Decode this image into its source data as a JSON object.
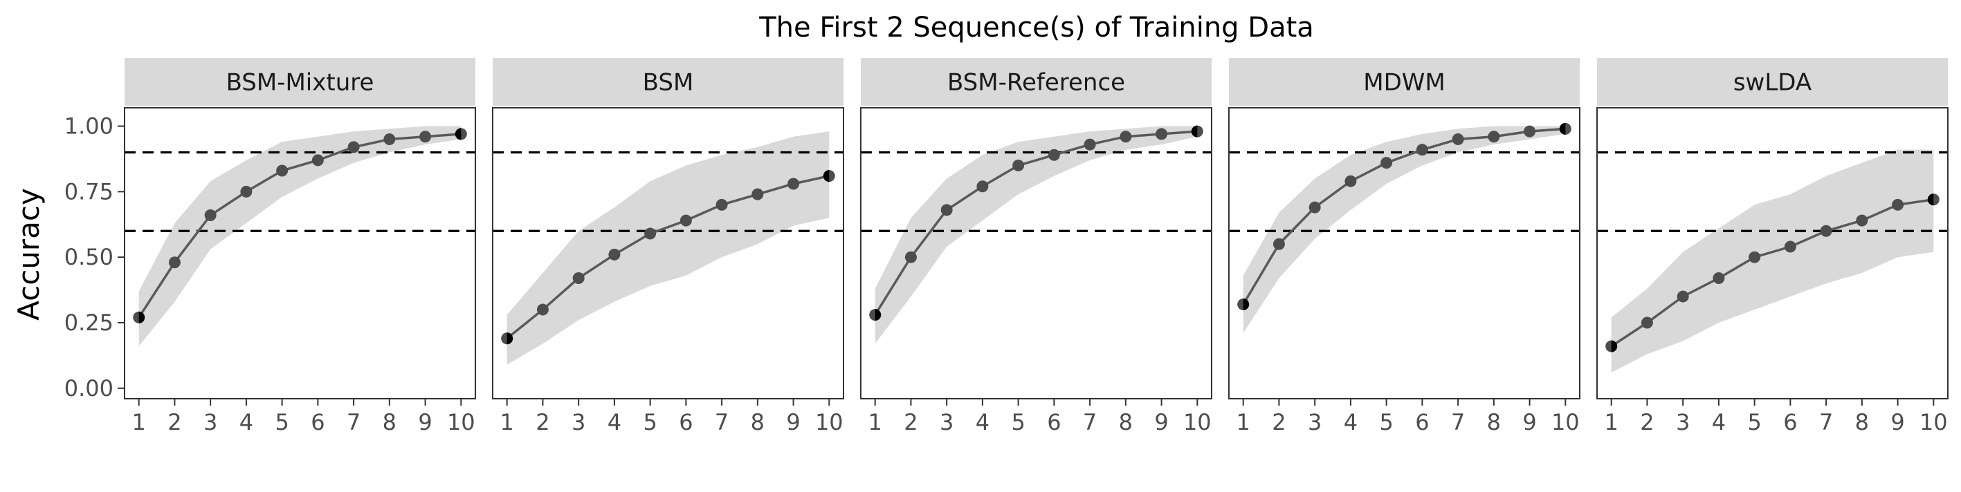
{
  "chart_data": {
    "type": "line",
    "title": "The First 2 Sequence(s) of Training Data",
    "xlabel": "",
    "ylabel": "Accuracy",
    "x": [
      1,
      2,
      3,
      4,
      5,
      6,
      7,
      8,
      9,
      10
    ],
    "x_tick_labels": [
      "1",
      "2",
      "3",
      "4",
      "5",
      "6",
      "7",
      "8",
      "9",
      "10"
    ],
    "y_tick_labels": [
      "0.00",
      "0.25",
      "0.50",
      "0.75",
      "1.00"
    ],
    "y_ticks": [
      0,
      0.25,
      0.5,
      0.75,
      1.0
    ],
    "xlim": [
      0.6,
      10.4
    ],
    "ylim": [
      -0.04,
      1.07
    ],
    "reference_lines": [
      0.6,
      0.9
    ],
    "grid": false,
    "legend": "none",
    "colors": {
      "line": "#5a5a5a",
      "point": "#4d4d4d",
      "ribbon": "#d9d9d9",
      "strip": "#d9d9d9",
      "reference": "#000000"
    },
    "panels": [
      {
        "name": "BSM-Mixture",
        "values": [
          0.27,
          0.48,
          0.66,
          0.75,
          0.83,
          0.87,
          0.92,
          0.95,
          0.96,
          0.97
        ],
        "lower": [
          0.16,
          0.33,
          0.53,
          0.63,
          0.73,
          0.8,
          0.86,
          0.9,
          0.93,
          0.95
        ],
        "upper": [
          0.37,
          0.63,
          0.79,
          0.87,
          0.94,
          0.96,
          0.98,
          0.99,
          1.0,
          1.0
        ]
      },
      {
        "name": "BSM",
        "values": [
          0.19,
          0.3,
          0.42,
          0.51,
          0.59,
          0.64,
          0.7,
          0.74,
          0.78,
          0.81
        ],
        "lower": [
          0.09,
          0.17,
          0.26,
          0.33,
          0.39,
          0.43,
          0.5,
          0.55,
          0.62,
          0.65
        ],
        "upper": [
          0.28,
          0.44,
          0.6,
          0.69,
          0.79,
          0.85,
          0.89,
          0.92,
          0.96,
          0.98
        ]
      },
      {
        "name": "BSM-Reference",
        "values": [
          0.28,
          0.5,
          0.68,
          0.77,
          0.85,
          0.89,
          0.93,
          0.96,
          0.97,
          0.98
        ],
        "lower": [
          0.17,
          0.35,
          0.54,
          0.64,
          0.74,
          0.81,
          0.87,
          0.91,
          0.93,
          0.96
        ],
        "upper": [
          0.38,
          0.65,
          0.8,
          0.89,
          0.94,
          0.96,
          0.98,
          0.99,
          1.0,
          1.0
        ]
      },
      {
        "name": "MDWM",
        "values": [
          0.32,
          0.55,
          0.69,
          0.79,
          0.86,
          0.91,
          0.95,
          0.96,
          0.98,
          0.99
        ],
        "lower": [
          0.21,
          0.42,
          0.57,
          0.68,
          0.78,
          0.85,
          0.9,
          0.93,
          0.95,
          0.97
        ],
        "upper": [
          0.43,
          0.67,
          0.8,
          0.89,
          0.94,
          0.97,
          0.99,
          1.0,
          1.0,
          1.0
        ]
      },
      {
        "name": "swLDA",
        "values": [
          0.16,
          0.25,
          0.35,
          0.42,
          0.5,
          0.54,
          0.6,
          0.64,
          0.7,
          0.72
        ],
        "lower": [
          0.06,
          0.13,
          0.18,
          0.25,
          0.3,
          0.35,
          0.4,
          0.44,
          0.5,
          0.52
        ],
        "upper": [
          0.27,
          0.38,
          0.52,
          0.61,
          0.7,
          0.74,
          0.81,
          0.86,
          0.91,
          0.91
        ]
      }
    ]
  }
}
